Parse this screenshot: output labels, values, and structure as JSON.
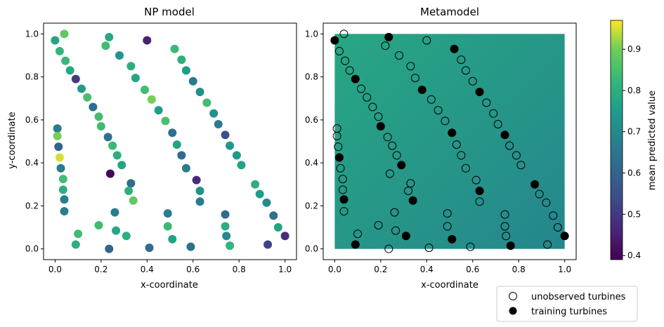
{
  "chart_data": [
    {
      "type": "scatter",
      "title": "NP model",
      "xlabel": "x-coordinate",
      "ylabel": "y-coordinate",
      "xlim": [
        -0.05,
        1.05
      ],
      "ylim": [
        -0.05,
        1.05
      ],
      "xticks": [
        "0.0",
        "0.2",
        "0.4",
        "0.6",
        "0.8",
        "1.0"
      ],
      "yticks": [
        "0.0",
        "0.2",
        "0.4",
        "0.6",
        "0.8",
        "1.0"
      ],
      "tick_values": [
        0,
        0.2,
        0.4,
        0.6,
        0.8,
        1.0
      ],
      "points": [
        {
          "x": 0.0,
          "y": 0.97,
          "v": 0.77
        },
        {
          "x": 0.04,
          "y": 1.0,
          "v": 0.88
        },
        {
          "x": 0.02,
          "y": 0.92,
          "v": 0.82
        },
        {
          "x": 0.045,
          "y": 0.875,
          "v": 0.83
        },
        {
          "x": 0.065,
          "y": 0.83,
          "v": 0.78
        },
        {
          "x": 0.09,
          "y": 0.79,
          "v": 0.5
        },
        {
          "x": 0.115,
          "y": 0.745,
          "v": 0.75
        },
        {
          "x": 0.14,
          "y": 0.705,
          "v": 0.85
        },
        {
          "x": 0.165,
          "y": 0.66,
          "v": 0.62
        },
        {
          "x": 0.19,
          "y": 0.615,
          "v": 0.84
        },
        {
          "x": 0.2,
          "y": 0.57,
          "v": 0.84
        },
        {
          "x": 0.23,
          "y": 0.52,
          "v": 0.63
        },
        {
          "x": 0.25,
          "y": 0.48,
          "v": 0.83
        },
        {
          "x": 0.27,
          "y": 0.435,
          "v": 0.8
        },
        {
          "x": 0.29,
          "y": 0.39,
          "v": 0.77
        },
        {
          "x": 0.235,
          "y": 0.985,
          "v": 0.78
        },
        {
          "x": 0.22,
          "y": 0.945,
          "v": 0.84
        },
        {
          "x": 0.28,
          "y": 0.9,
          "v": 0.73
        },
        {
          "x": 0.33,
          "y": 0.85,
          "v": 0.8
        },
        {
          "x": 0.35,
          "y": 0.795,
          "v": 0.77
        },
        {
          "x": 0.39,
          "y": 0.74,
          "v": 0.84
        },
        {
          "x": 0.42,
          "y": 0.695,
          "v": 0.9
        },
        {
          "x": 0.45,
          "y": 0.645,
          "v": 0.75
        },
        {
          "x": 0.48,
          "y": 0.595,
          "v": 0.85
        },
        {
          "x": 0.51,
          "y": 0.54,
          "v": 0.63
        },
        {
          "x": 0.53,
          "y": 0.485,
          "v": 0.77
        },
        {
          "x": 0.55,
          "y": 0.435,
          "v": 0.62
        },
        {
          "x": 0.57,
          "y": 0.375,
          "v": 0.66
        },
        {
          "x": 0.615,
          "y": 0.32,
          "v": 0.47
        },
        {
          "x": 0.4,
          "y": 0.97,
          "v": 0.45
        },
        {
          "x": 0.52,
          "y": 0.93,
          "v": 0.83
        },
        {
          "x": 0.55,
          "y": 0.88,
          "v": 0.8
        },
        {
          "x": 0.57,
          "y": 0.83,
          "v": 0.75
        },
        {
          "x": 0.6,
          "y": 0.78,
          "v": 0.66
        },
        {
          "x": 0.63,
          "y": 0.73,
          "v": 0.72
        },
        {
          "x": 0.66,
          "y": 0.68,
          "v": 0.84
        },
        {
          "x": 0.69,
          "y": 0.63,
          "v": 0.72
        },
        {
          "x": 0.71,
          "y": 0.58,
          "v": 0.66
        },
        {
          "x": 0.74,
          "y": 0.53,
          "v": 0.55
        },
        {
          "x": 0.76,
          "y": 0.48,
          "v": 0.74
        },
        {
          "x": 0.79,
          "y": 0.435,
          "v": 0.74
        },
        {
          "x": 0.81,
          "y": 0.39,
          "v": 0.77
        },
        {
          "x": 0.87,
          "y": 0.3,
          "v": 0.8
        },
        {
          "x": 0.89,
          "y": 0.255,
          "v": 0.75
        },
        {
          "x": 0.92,
          "y": 0.215,
          "v": 0.7
        },
        {
          "x": 0.95,
          "y": 0.155,
          "v": 0.63
        },
        {
          "x": 0.97,
          "y": 0.1,
          "v": 0.77
        },
        {
          "x": 1.0,
          "y": 0.06,
          "v": 0.47
        },
        {
          "x": 0.925,
          "y": 0.02,
          "v": 0.52
        },
        {
          "x": 0.01,
          "y": 0.56,
          "v": 0.66
        },
        {
          "x": 0.01,
          "y": 0.525,
          "v": 0.9
        },
        {
          "x": 0.015,
          "y": 0.475,
          "v": 0.6
        },
        {
          "x": 0.02,
          "y": 0.425,
          "v": 0.95
        },
        {
          "x": 0.025,
          "y": 0.375,
          "v": 0.66
        },
        {
          "x": 0.035,
          "y": 0.325,
          "v": 0.84
        },
        {
          "x": 0.035,
          "y": 0.275,
          "v": 0.8
        },
        {
          "x": 0.04,
          "y": 0.23,
          "v": 0.67
        },
        {
          "x": 0.04,
          "y": 0.175,
          "v": 0.67
        },
        {
          "x": 0.1,
          "y": 0.07,
          "v": 0.84
        },
        {
          "x": 0.09,
          "y": 0.02,
          "v": 0.8
        },
        {
          "x": 0.24,
          "y": 0.35,
          "v": 0.4
        },
        {
          "x": 0.33,
          "y": 0.305,
          "v": 0.62
        },
        {
          "x": 0.32,
          "y": 0.27,
          "v": 0.8
        },
        {
          "x": 0.34,
          "y": 0.225,
          "v": 0.88
        },
        {
          "x": 0.26,
          "y": 0.17,
          "v": 0.67
        },
        {
          "x": 0.19,
          "y": 0.11,
          "v": 0.84
        },
        {
          "x": 0.265,
          "y": 0.085,
          "v": 0.78
        },
        {
          "x": 0.31,
          "y": 0.06,
          "v": 0.8
        },
        {
          "x": 0.235,
          "y": 0.0,
          "v": 0.6
        },
        {
          "x": 0.41,
          "y": 0.005,
          "v": 0.62
        },
        {
          "x": 0.49,
          "y": 0.165,
          "v": 0.66
        },
        {
          "x": 0.49,
          "y": 0.105,
          "v": 0.83
        },
        {
          "x": 0.51,
          "y": 0.045,
          "v": 0.76
        },
        {
          "x": 0.59,
          "y": 0.01,
          "v": 0.63
        },
        {
          "x": 0.63,
          "y": 0.27,
          "v": 0.72
        },
        {
          "x": 0.63,
          "y": 0.22,
          "v": 0.66
        },
        {
          "x": 0.74,
          "y": 0.16,
          "v": 0.62
        },
        {
          "x": 0.74,
          "y": 0.105,
          "v": 0.8
        },
        {
          "x": 0.745,
          "y": 0.06,
          "v": 0.7
        },
        {
          "x": 0.76,
          "y": 0.015,
          "v": 0.82
        }
      ]
    },
    {
      "type": "heatmap+scatter",
      "title": "Metamodel",
      "xlabel": "x-coordinate",
      "ylabel": "",
      "xlim": [
        -0.05,
        1.05
      ],
      "ylim": [
        -0.05,
        1.05
      ],
      "xticks": [
        "0.0",
        "0.2",
        "0.4",
        "0.6",
        "0.8",
        "1.0"
      ],
      "yticks": [
        "0.0",
        "0.2",
        "0.4",
        "0.6",
        "0.8",
        "1.0"
      ],
      "tick_values": [
        0,
        0.2,
        0.4,
        0.6,
        0.8,
        1.0
      ],
      "field": {
        "domain": [
          0,
          1
        ],
        "value_top_left": 0.78,
        "value_bottom_right": 0.69
      },
      "training": [
        {
          "x": 0.0,
          "y": 0.97
        },
        {
          "x": 0.235,
          "y": 0.985
        },
        {
          "x": 0.09,
          "y": 0.79
        },
        {
          "x": 0.52,
          "y": 0.93
        },
        {
          "x": 0.38,
          "y": 0.74
        },
        {
          "x": 0.63,
          "y": 0.73
        },
        {
          "x": 0.2,
          "y": 0.57
        },
        {
          "x": 0.51,
          "y": 0.54
        },
        {
          "x": 0.74,
          "y": 0.53
        },
        {
          "x": 0.02,
          "y": 0.425
        },
        {
          "x": 0.29,
          "y": 0.39
        },
        {
          "x": 0.04,
          "y": 0.23
        },
        {
          "x": 0.34,
          "y": 0.225
        },
        {
          "x": 0.63,
          "y": 0.27
        },
        {
          "x": 0.87,
          "y": 0.3
        },
        {
          "x": 1.0,
          "y": 0.06
        },
        {
          "x": 0.31,
          "y": 0.06
        },
        {
          "x": 0.51,
          "y": 0.045
        },
        {
          "x": 0.765,
          "y": 0.015
        },
        {
          "x": 0.09,
          "y": 0.02
        }
      ],
      "unobserved": [
        {
          "x": 0.04,
          "y": 1.0
        },
        {
          "x": 0.02,
          "y": 0.92
        },
        {
          "x": 0.045,
          "y": 0.875
        },
        {
          "x": 0.065,
          "y": 0.83
        },
        {
          "x": 0.115,
          "y": 0.745
        },
        {
          "x": 0.14,
          "y": 0.705
        },
        {
          "x": 0.165,
          "y": 0.66
        },
        {
          "x": 0.19,
          "y": 0.615
        },
        {
          "x": 0.23,
          "y": 0.52
        },
        {
          "x": 0.25,
          "y": 0.48
        },
        {
          "x": 0.27,
          "y": 0.435
        },
        {
          "x": 0.22,
          "y": 0.945
        },
        {
          "x": 0.28,
          "y": 0.9
        },
        {
          "x": 0.33,
          "y": 0.85
        },
        {
          "x": 0.35,
          "y": 0.795
        },
        {
          "x": 0.42,
          "y": 0.695
        },
        {
          "x": 0.45,
          "y": 0.645
        },
        {
          "x": 0.48,
          "y": 0.595
        },
        {
          "x": 0.53,
          "y": 0.485
        },
        {
          "x": 0.55,
          "y": 0.435
        },
        {
          "x": 0.57,
          "y": 0.375
        },
        {
          "x": 0.615,
          "y": 0.32
        },
        {
          "x": 0.4,
          "y": 0.97
        },
        {
          "x": 0.55,
          "y": 0.88
        },
        {
          "x": 0.57,
          "y": 0.83
        },
        {
          "x": 0.6,
          "y": 0.78
        },
        {
          "x": 0.66,
          "y": 0.68
        },
        {
          "x": 0.69,
          "y": 0.63
        },
        {
          "x": 0.71,
          "y": 0.58
        },
        {
          "x": 0.76,
          "y": 0.48
        },
        {
          "x": 0.79,
          "y": 0.435
        },
        {
          "x": 0.81,
          "y": 0.39
        },
        {
          "x": 0.89,
          "y": 0.255
        },
        {
          "x": 0.92,
          "y": 0.215
        },
        {
          "x": 0.95,
          "y": 0.155
        },
        {
          "x": 0.97,
          "y": 0.1
        },
        {
          "x": 0.925,
          "y": 0.02
        },
        {
          "x": 0.01,
          "y": 0.56
        },
        {
          "x": 0.01,
          "y": 0.525
        },
        {
          "x": 0.015,
          "y": 0.475
        },
        {
          "x": 0.025,
          "y": 0.375
        },
        {
          "x": 0.035,
          "y": 0.325
        },
        {
          "x": 0.035,
          "y": 0.275
        },
        {
          "x": 0.04,
          "y": 0.175
        },
        {
          "x": 0.1,
          "y": 0.07
        },
        {
          "x": 0.24,
          "y": 0.35
        },
        {
          "x": 0.33,
          "y": 0.305
        },
        {
          "x": 0.32,
          "y": 0.27
        },
        {
          "x": 0.26,
          "y": 0.17
        },
        {
          "x": 0.19,
          "y": 0.11
        },
        {
          "x": 0.265,
          "y": 0.085
        },
        {
          "x": 0.235,
          "y": 0.0
        },
        {
          "x": 0.41,
          "y": 0.005
        },
        {
          "x": 0.49,
          "y": 0.165
        },
        {
          "x": 0.49,
          "y": 0.105
        },
        {
          "x": 0.59,
          "y": 0.01
        },
        {
          "x": 0.63,
          "y": 0.22
        },
        {
          "x": 0.74,
          "y": 0.16
        },
        {
          "x": 0.74,
          "y": 0.105
        },
        {
          "x": 0.745,
          "y": 0.06
        }
      ],
      "legend": {
        "placement": "bottom-right",
        "entries": [
          "unobserved turbines",
          "training turbines"
        ]
      }
    }
  ],
  "colorbar": {
    "label": "mean predicted value",
    "colormap": "viridis",
    "range": [
      0.39,
      0.97
    ],
    "ticks": [
      0.4,
      0.5,
      0.6,
      0.7,
      0.8,
      0.9
    ],
    "tick_labels": [
      "0.4",
      "0.5",
      "0.6",
      "0.7",
      "0.8",
      "0.9"
    ]
  }
}
